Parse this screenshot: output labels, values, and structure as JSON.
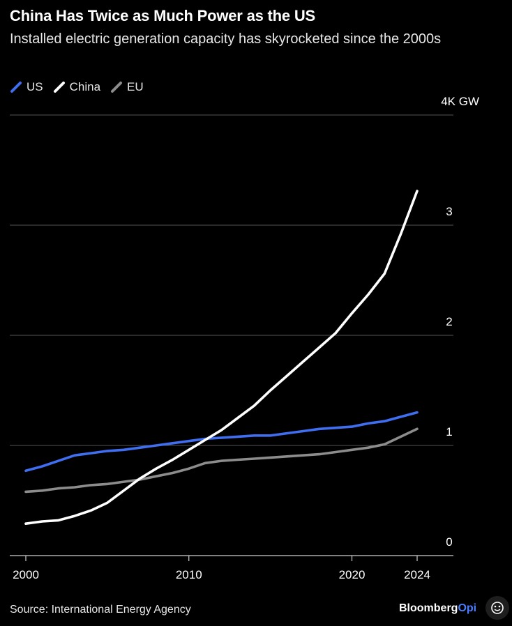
{
  "header": {
    "title": "China Has Twice as Much Power as the US",
    "subtitle": "Installed electric generation capacity has skyrocketed since the 2000s"
  },
  "footer": {
    "source": "Source: International Energy Agency",
    "brand_main": "Bloomberg",
    "brand_accent": "Opi"
  },
  "colors": {
    "background": "#000000",
    "us": "#3f6ff0",
    "china": "#ffffff",
    "eu": "#8c8c8c",
    "gridline": "#555555",
    "brand_accent": "#4a7dff"
  },
  "chart_data": {
    "type": "line",
    "title": "China Has Twice as Much Power as the US",
    "subtitle": "Installed electric generation capacity has skyrocketed since the 2000s",
    "y_unit_label": "4K GW",
    "x_ticks": [
      "2000",
      "2010",
      "2020",
      "2024"
    ],
    "y_ticks": [
      "0",
      "1",
      "2",
      "3",
      "4K GW"
    ],
    "xlim": [
      1999.3,
      2026.3
    ],
    "ylim": [
      0,
      4
    ],
    "grid": true,
    "legend_placement": "top-left",
    "x": [
      2000,
      2001,
      2002,
      2003,
      2004,
      2005,
      2006,
      2007,
      2008,
      2009,
      2010,
      2011,
      2012,
      2013,
      2014,
      2015,
      2016,
      2017,
      2018,
      2019,
      2020,
      2021,
      2022,
      2023,
      2024
    ],
    "series": [
      {
        "name": "US",
        "color": "#3f6ff0",
        "values": [
          0.77,
          0.81,
          0.86,
          0.91,
          0.93,
          0.95,
          0.96,
          0.98,
          1.0,
          1.02,
          1.04,
          1.06,
          1.07,
          1.08,
          1.09,
          1.09,
          1.11,
          1.13,
          1.15,
          1.16,
          1.17,
          1.2,
          1.22,
          1.26,
          1.3
        ]
      },
      {
        "name": "China",
        "color": "#ffffff",
        "values": [
          0.29,
          0.31,
          0.32,
          0.36,
          0.41,
          0.48,
          0.59,
          0.7,
          0.79,
          0.87,
          0.96,
          1.05,
          1.14,
          1.25,
          1.36,
          1.5,
          1.63,
          1.76,
          1.89,
          2.02,
          2.2,
          2.37,
          2.56,
          2.92,
          3.31
        ]
      },
      {
        "name": "EU",
        "color": "#8c8c8c",
        "values": [
          0.58,
          0.59,
          0.61,
          0.62,
          0.64,
          0.65,
          0.67,
          0.69,
          0.72,
          0.75,
          0.79,
          0.84,
          0.86,
          0.87,
          0.88,
          0.89,
          0.9,
          0.91,
          0.92,
          0.94,
          0.96,
          0.98,
          1.01,
          1.08,
          1.15
        ]
      }
    ]
  }
}
